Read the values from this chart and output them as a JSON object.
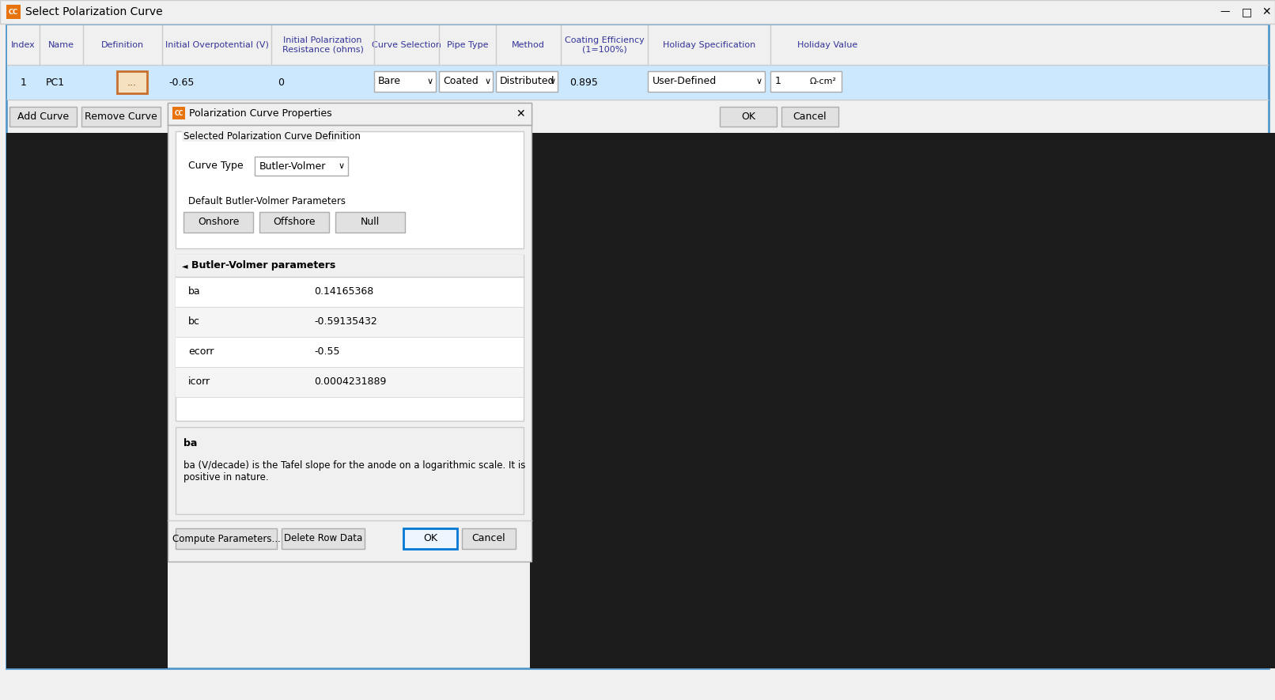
{
  "title": "Select Polarization Curve",
  "dialog_title": "Polarization Curve Properties",
  "cc_color": "#E8730C",
  "cc_text": "CC",
  "window_bg": "#F0F0F0",
  "table_header_bg": "#F0F0F0",
  "table_selected_bg": "#CCE8FF",
  "dark_bg": "#1A1A1A",
  "curve_type": "Butler-Volmer",
  "bv_params": [
    {
      "name": "ba",
      "value": "0.14165368"
    },
    {
      "name": "bc",
      "value": "-0.59135432"
    },
    {
      "name": "ecorr",
      "value": "-0.55"
    },
    {
      "name": "icorr",
      "value": "0.0004231889"
    }
  ],
  "ba_label": "ba",
  "ba_description": "ba (V/decade) is the Tafel slope for the anode on a logarithmic scale. It is\npositive in nature.",
  "onshore_btn": "Onshore",
  "offshore_btn": "Offshore",
  "null_btn": "Null",
  "compute_btn": "Compute Parameters...",
  "delete_btn": "Delete Row Data",
  "ok_btn": "OK",
  "cancel_btn": "Cancel",
  "add_curve_btn": "Add Curve",
  "remove_curve_btn": "Remove Curve",
  "selected_def_label": "Selected Polarization Curve Definition",
  "default_bv_label": "Default Butler-Volmer Parameters",
  "bv_section_header": "Butler-Volmer parameters",
  "curve_type_label": "Curve Type",
  "figsize": [
    16.12,
    8.85
  ],
  "dpi": 100
}
